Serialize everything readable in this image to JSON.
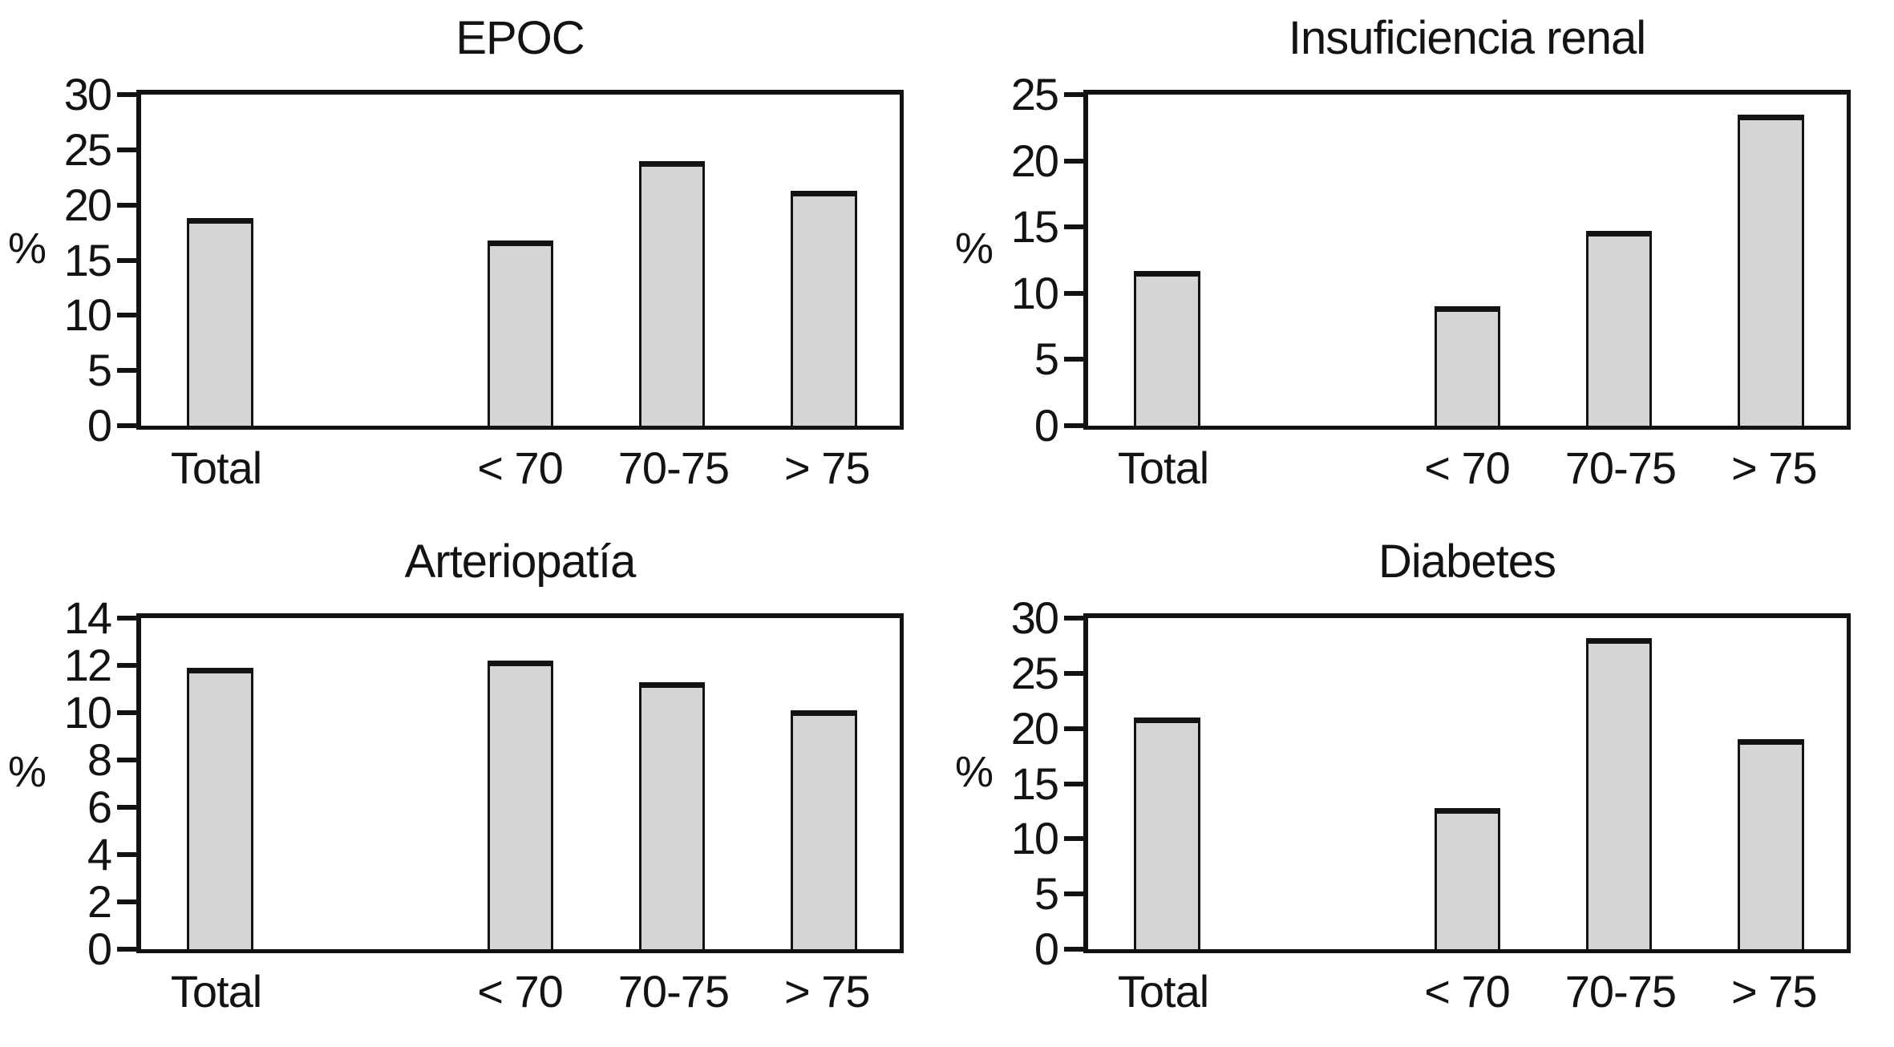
{
  "figure": {
    "background": "#ffffff",
    "text_color": "#131313"
  },
  "colors": {
    "bar_fill": "#d3d5d7",
    "bar_border": "#131313",
    "axis": "#131313"
  },
  "chart_data": [
    {
      "type": "bar",
      "title": "EPOC",
      "ylabel": "%",
      "categories": [
        "Total",
        "< 70",
        "70-75",
        "> 75"
      ],
      "values": [
        18.8,
        16.8,
        24.0,
        21.3
      ],
      "ylim": [
        0,
        30
      ],
      "ytick_step": 5,
      "grid": false,
      "legend": "none"
    },
    {
      "type": "bar",
      "title": "Insuficiencia renal",
      "ylabel": "%",
      "categories": [
        "Total",
        "< 70",
        "70-75",
        "> 75"
      ],
      "values": [
        11.7,
        9.0,
        14.7,
        23.5
      ],
      "ylim": [
        0,
        25
      ],
      "ytick_step": 5,
      "grid": false,
      "legend": "none"
    },
    {
      "type": "bar",
      "title": "Arteriopatía",
      "ylabel": "%",
      "categories": [
        "Total",
        "< 70",
        "70-75",
        "> 75"
      ],
      "values": [
        11.9,
        12.2,
        11.3,
        10.1
      ],
      "ylim": [
        0,
        14
      ],
      "ytick_step": 2,
      "grid": false,
      "legend": "none"
    },
    {
      "type": "bar",
      "title": "Diabetes",
      "ylabel": "%",
      "categories": [
        "Total",
        "< 70",
        "70-75",
        "> 75"
      ],
      "values": [
        21.0,
        12.8,
        28.2,
        19.0
      ],
      "ylim": [
        0,
        30
      ],
      "ytick_step": 5,
      "grid": false,
      "legend": "none"
    }
  ]
}
